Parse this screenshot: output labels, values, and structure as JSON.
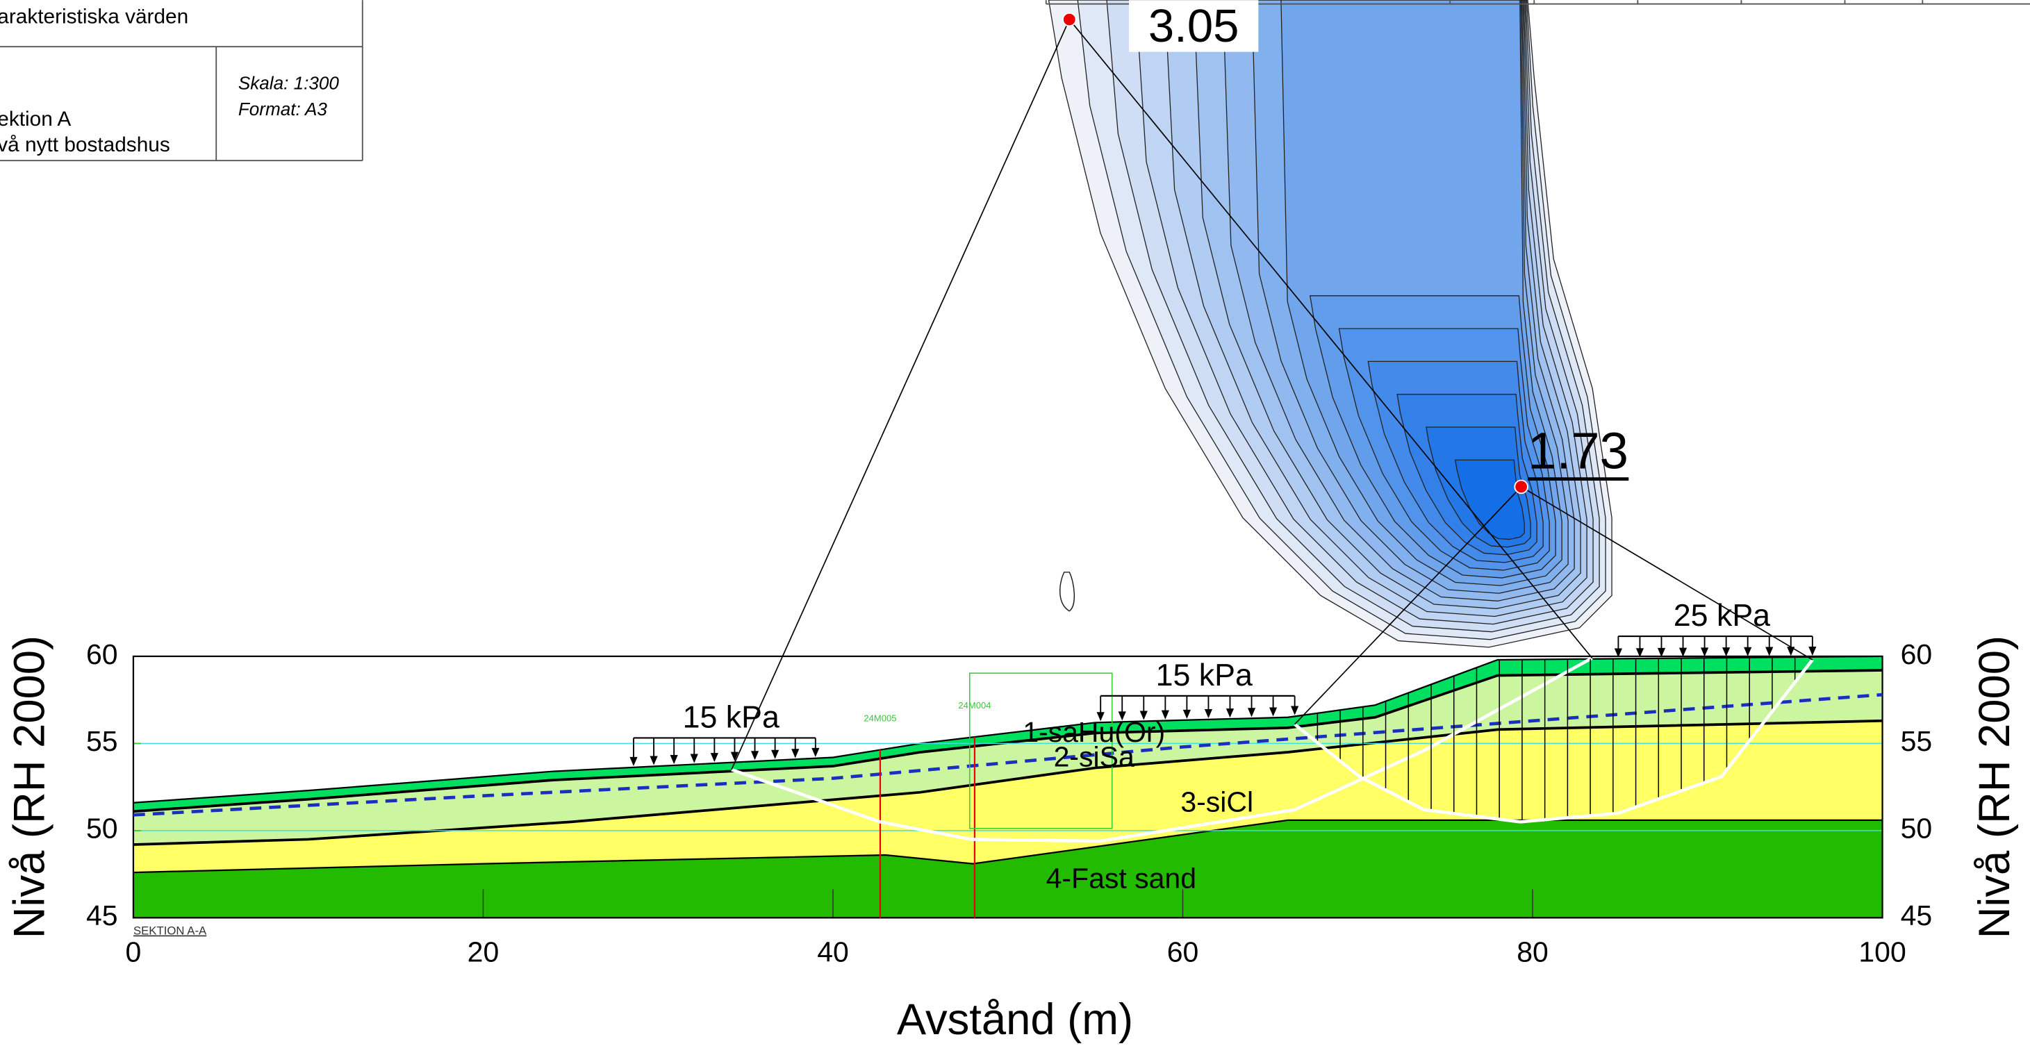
{
  "title_block": {
    "line1": "arakteristiska värden",
    "line2": "ektion A",
    "line3": "vå nytt bostadshus",
    "scale": "Skala: 1:300",
    "format": "Format: A3"
  },
  "chart_data": {
    "type": "slope-stability",
    "xlabel": "Avstånd (m)",
    "ylabel": "Nivå (RH 2000)",
    "ylabel_right": "Nivå (RH 2000)",
    "section_label": "SEKTION A-A",
    "xlim": [
      0,
      100
    ],
    "ylim": [
      45,
      60
    ],
    "xticks": [
      0,
      20,
      40,
      60,
      80,
      100
    ],
    "yticks": [
      45,
      50,
      55,
      60
    ],
    "grid": true,
    "layers": [
      {
        "name": "1-saHu(Or)",
        "color": "#00e060",
        "top_x": [
          0,
          10,
          24,
          40,
          45,
          55,
          66,
          71,
          78,
          100
        ],
        "top_y": [
          51.6,
          52.3,
          53.4,
          54.2,
          55.0,
          56.2,
          56.5,
          57.2,
          59.8,
          60
        ]
      },
      {
        "name": "2-siSa",
        "color": "#ccf5a0",
        "top_x": [
          0,
          10,
          24,
          40,
          45,
          55,
          66,
          71,
          78,
          100
        ],
        "top_y": [
          51.1,
          51.8,
          52.9,
          53.7,
          54.5,
          55.6,
          55.9,
          56.5,
          58.9,
          59.2
        ]
      },
      {
        "name": "3-siCl",
        "color": "#ffff66",
        "top_x": [
          0,
          10,
          25,
          45,
          55,
          66,
          78,
          100
        ],
        "top_y": [
          49.2,
          49.5,
          50.5,
          52.2,
          53.6,
          54.5,
          55.8,
          56.3
        ]
      },
      {
        "name": "4-Fast sand",
        "color": "#22bb00",
        "top_x": [
          0,
          20,
          43,
          48,
          66,
          100
        ],
        "top_y": [
          47.6,
          48.1,
          48.6,
          48.1,
          50.6,
          50.6
        ]
      }
    ],
    "water_table": {
      "color": "#1a2fc0",
      "x": [
        0,
        20,
        40,
        60,
        80,
        100
      ],
      "y": [
        50.9,
        52.0,
        53.0,
        54.8,
        56.3,
        57.8
      ]
    },
    "loads": [
      {
        "label": "15 kPa",
        "x_start": 28.6,
        "x_end": 39
      },
      {
        "label": "15 kPa",
        "x_start": 55.3,
        "x_end": 66.4
      },
      {
        "label": "25 kPa",
        "x_start": 84.9,
        "x_end": 96
      }
    ],
    "slip_surfaces": [
      {
        "fos": 3.05,
        "x": [
          34.2,
          42.7,
          47.9,
          55.3,
          66.4,
          73.8,
          83.4
        ],
        "y": [
          53.5,
          50.5,
          49.5,
          49.4,
          51.2,
          54.6,
          59.9
        ]
      },
      {
        "fos": 1.73,
        "x": [
          66.4,
          70.1,
          73.8,
          79.3,
          84.9,
          90.8,
          96
        ],
        "y": [
          56.1,
          53.1,
          51.2,
          50.5,
          51.0,
          53.1,
          59.8
        ]
      }
    ],
    "boreholes": [
      {
        "name": "24M005",
        "x": 42.7
      },
      {
        "name": "24M004",
        "x": 48.1
      }
    ]
  }
}
